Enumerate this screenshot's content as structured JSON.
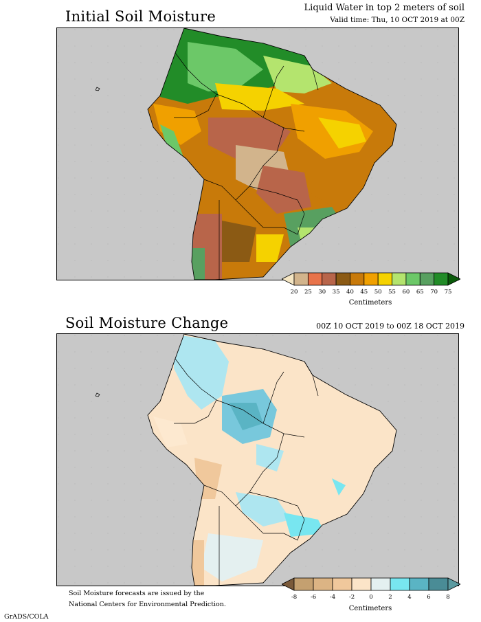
{
  "header": {
    "title_line": "Liquid Water in top 2 meters of soil",
    "valid_time": "Valid time: Thu, 10 OCT 2019 at 00Z"
  },
  "panel1": {
    "title": "Initial Soil Moisture",
    "colorbar": {
      "ticks": [
        "20",
        "25",
        "30",
        "35",
        "40",
        "45",
        "50",
        "55",
        "60",
        "65",
        "70",
        "75"
      ],
      "colors": [
        "#f5e6c3",
        "#d2b48c",
        "#e8734a",
        "#b8654a",
        "#8b5a14",
        "#c87a0a",
        "#f0a000",
        "#f5d200",
        "#b4e46e",
        "#6cc868",
        "#58a060",
        "#228c28",
        "#0a5a0a"
      ],
      "units": "Centimeters"
    }
  },
  "panel2": {
    "title": "Soil Moisture Change",
    "period": "00Z 10 OCT 2019 to 00Z 18 OCT 2019",
    "colorbar": {
      "ticks": [
        "-8",
        "-6",
        "-4",
        "-2",
        "0",
        "2",
        "4",
        "6",
        "8"
      ],
      "colors": [
        "#7a5a3a",
        "#c4a070",
        "#dcb484",
        "#f0c89c",
        "#fbe4c8",
        "#e4f0f0",
        "#78e6f0",
        "#5ab4c4",
        "#4a8c96",
        "#5a9aa0"
      ],
      "units": "Centimeters"
    }
  },
  "footer": {
    "note_line1": "Soil Moisture forecasts are issued by the",
    "note_line2": "National Centers for Environmental Prediction.",
    "credit": "GrADS/COLA"
  }
}
